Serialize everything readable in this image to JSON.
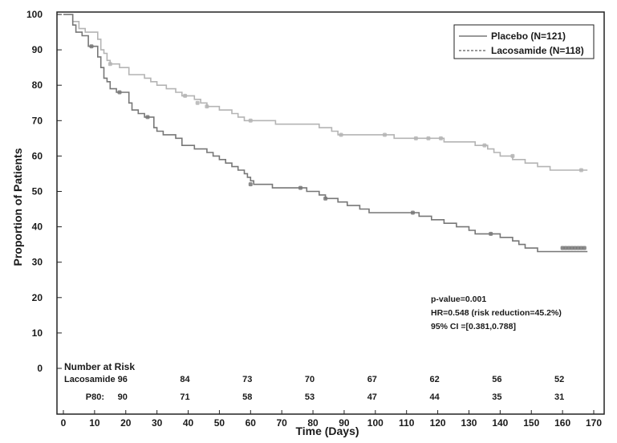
{
  "chart_data": {
    "type": "line",
    "xlabel": "Time (Days)",
    "ylabel": "Proportion of Patients",
    "xlim": [
      0,
      170
    ],
    "ylim": [
      0,
      100
    ],
    "x_ticks": [
      0,
      10,
      20,
      30,
      40,
      50,
      60,
      70,
      80,
      90,
      100,
      110,
      120,
      130,
      140,
      150,
      160,
      170
    ],
    "y_ticks": [
      0,
      10,
      20,
      30,
      40,
      50,
      60,
      70,
      80,
      90,
      100
    ],
    "legend_position": "top-right",
    "series": [
      {
        "name": "Placebo (N=121)",
        "color": "#777777",
        "points": [
          [
            0,
            100
          ],
          [
            2,
            100
          ],
          [
            3,
            97
          ],
          [
            4,
            95
          ],
          [
            6,
            94
          ],
          [
            8,
            91
          ],
          [
            10,
            91
          ],
          [
            11,
            88
          ],
          [
            12,
            85
          ],
          [
            13,
            82
          ],
          [
            14,
            81
          ],
          [
            15,
            79
          ],
          [
            17,
            78
          ],
          [
            20,
            78
          ],
          [
            21,
            75
          ],
          [
            22,
            73
          ],
          [
            24,
            72
          ],
          [
            26,
            71
          ],
          [
            28,
            71
          ],
          [
            29,
            68
          ],
          [
            30,
            67
          ],
          [
            32,
            66
          ],
          [
            36,
            65
          ],
          [
            38,
            63
          ],
          [
            42,
            62
          ],
          [
            46,
            61
          ],
          [
            48,
            60
          ],
          [
            50,
            59
          ],
          [
            52,
            58
          ],
          [
            54,
            57
          ],
          [
            56,
            56
          ],
          [
            58,
            55
          ],
          [
            59,
            54
          ],
          [
            60,
            53
          ],
          [
            61,
            52
          ],
          [
            66,
            52
          ],
          [
            67,
            51
          ],
          [
            76,
            51
          ],
          [
            78,
            50
          ],
          [
            82,
            49
          ],
          [
            84,
            48
          ],
          [
            88,
            47
          ],
          [
            91,
            46
          ],
          [
            95,
            45
          ],
          [
            98,
            44
          ],
          [
            112,
            44
          ],
          [
            114,
            43
          ],
          [
            118,
            42
          ],
          [
            122,
            41
          ],
          [
            126,
            40
          ],
          [
            130,
            39
          ],
          [
            132,
            38
          ],
          [
            136,
            38
          ],
          [
            140,
            37
          ],
          [
            142,
            37
          ],
          [
            144,
            36
          ],
          [
            146,
            35
          ],
          [
            148,
            34
          ],
          [
            152,
            33
          ],
          [
            168,
            33
          ]
        ],
        "censor_marks": [
          [
            9,
            91
          ],
          [
            18,
            78
          ],
          [
            27,
            71
          ],
          [
            60,
            52
          ],
          [
            76,
            51
          ],
          [
            84,
            48
          ],
          [
            112,
            44
          ],
          [
            137,
            38
          ],
          [
            160,
            34
          ],
          [
            161,
            34
          ],
          [
            162,
            34
          ],
          [
            163,
            34
          ],
          [
            164,
            34
          ],
          [
            165,
            34
          ],
          [
            166,
            34
          ],
          [
            167,
            34
          ]
        ]
      },
      {
        "name": "Lacosamide (N=118)",
        "color": "#b4b4b4",
        "points": [
          [
            0,
            100
          ],
          [
            3,
            98
          ],
          [
            5,
            96
          ],
          [
            7,
            95
          ],
          [
            10,
            95
          ],
          [
            11,
            93
          ],
          [
            12,
            90
          ],
          [
            13,
            89
          ],
          [
            14,
            87
          ],
          [
            15,
            86
          ],
          [
            18,
            85
          ],
          [
            20,
            85
          ],
          [
            21,
            83
          ],
          [
            24,
            83
          ],
          [
            26,
            82
          ],
          [
            28,
            81
          ],
          [
            30,
            80
          ],
          [
            33,
            79
          ],
          [
            36,
            78
          ],
          [
            38,
            77
          ],
          [
            42,
            76
          ],
          [
            44,
            75
          ],
          [
            46,
            74
          ],
          [
            50,
            73
          ],
          [
            54,
            72
          ],
          [
            56,
            71
          ],
          [
            58,
            70
          ],
          [
            64,
            70
          ],
          [
            66,
            70
          ],
          [
            68,
            69
          ],
          [
            76,
            69
          ],
          [
            82,
            68
          ],
          [
            86,
            67
          ],
          [
            88,
            66
          ],
          [
            98,
            66
          ],
          [
            104,
            66
          ],
          [
            106,
            65
          ],
          [
            118,
            65
          ],
          [
            120,
            65
          ],
          [
            122,
            64
          ],
          [
            128,
            64
          ],
          [
            132,
            63
          ],
          [
            136,
            62
          ],
          [
            138,
            61
          ],
          [
            140,
            60
          ],
          [
            144,
            59
          ],
          [
            146,
            59
          ],
          [
            148,
            58
          ],
          [
            152,
            57
          ],
          [
            156,
            56
          ],
          [
            162,
            56
          ],
          [
            168,
            56
          ]
        ],
        "censor_marks": [
          [
            15,
            86
          ],
          [
            39,
            77
          ],
          [
            43,
            75
          ],
          [
            46,
            74
          ],
          [
            60,
            70
          ],
          [
            89,
            66
          ],
          [
            103,
            66
          ],
          [
            113,
            65
          ],
          [
            117,
            65
          ],
          [
            121,
            65
          ],
          [
            135,
            63
          ],
          [
            144,
            60
          ],
          [
            166,
            56
          ]
        ]
      }
    ],
    "annotations": [
      "p-value=0.001",
      "HR=0.548 (risk reduction=45.2%)",
      "95% CI =[0.381,0.788]"
    ],
    "number_at_risk": {
      "title": "Number at Risk",
      "times": [
        20,
        40,
        60,
        80,
        100,
        120,
        140,
        160
      ],
      "rows": [
        {
          "label": "Lacosamide",
          "values": [
            "96",
            "84",
            "73",
            "70",
            "67",
            "62",
            "56",
            "52"
          ]
        },
        {
          "label": "P80:",
          "values": [
            "90",
            "71",
            "58",
            "53",
            "47",
            "44",
            "35",
            "31"
          ]
        }
      ]
    }
  }
}
